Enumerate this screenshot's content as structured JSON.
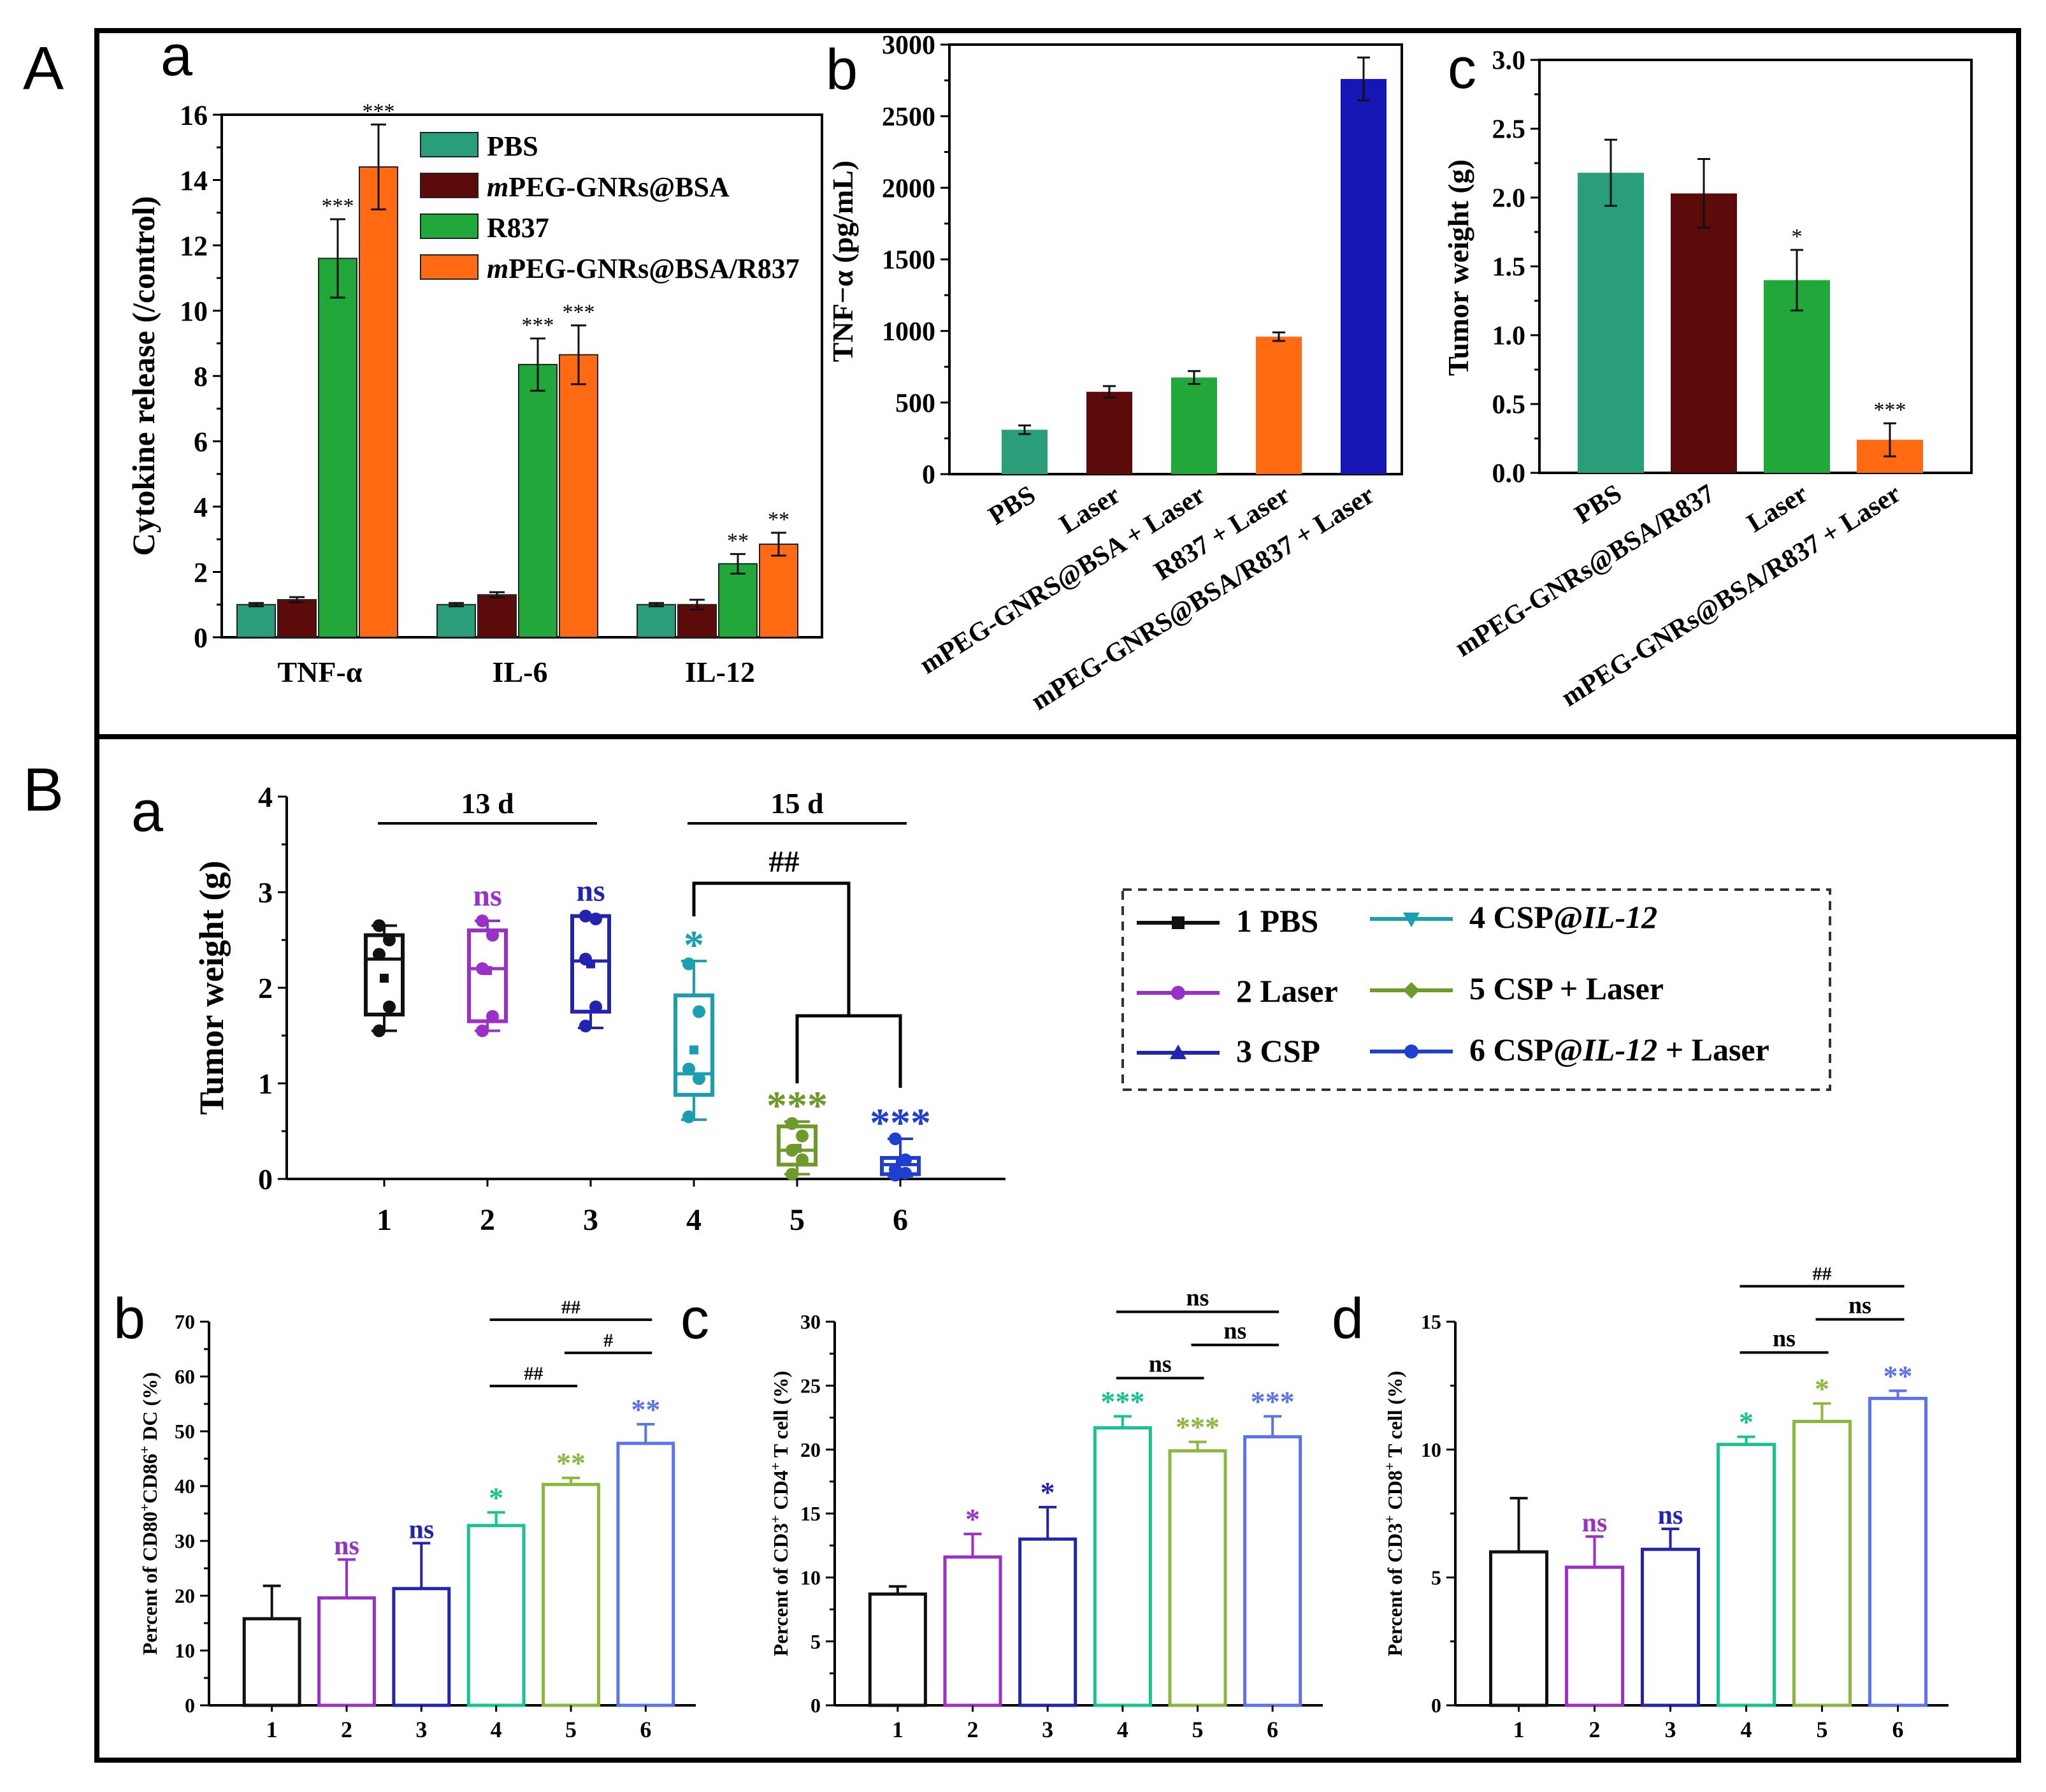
{
  "panel_labels": {
    "A": "A",
    "B": "B",
    "Aa": "a",
    "Ab": "b",
    "Ac": "c",
    "Ba": "a",
    "Bb": "b",
    "Bc": "c",
    "Bd": "d"
  },
  "colors": {
    "pbs_teal": "#2a9d7b",
    "maroon": "#5c0a0a",
    "green": "#22a83a",
    "orange": "#ff6a13",
    "navy": "#1616b4",
    "g1": "#111111",
    "g2": "#9b2fc9",
    "g3": "#2323b2",
    "g4": "#1a9fb0",
    "g5": "#6e9a2a",
    "g6": "#1f3fd0",
    "d4": "#16c28e",
    "d5": "#8ab83c",
    "d6": "#5a72f0"
  },
  "chart_data": [
    {
      "id": "Aa",
      "type": "bar",
      "ylabel": "Cytokine release (/control)",
      "ylim": [
        0,
        16
      ],
      "yticks": [
        "0",
        "2",
        "4",
        "6",
        "8",
        "10",
        "12",
        "14",
        "16"
      ],
      "categories": [
        "TNF-α",
        "IL-6",
        "IL-12"
      ],
      "series": [
        {
          "name": "PBS",
          "values": [
            1.0,
            1.0,
            1.0
          ],
          "errors": [
            0.05,
            0.05,
            0.05
          ],
          "sig": [
            "",
            "",
            ""
          ]
        },
        {
          "name": "mPEG-GNRs@BSA",
          "values": [
            1.15,
            1.3,
            1.0
          ],
          "errors": [
            0.08,
            0.08,
            0.15
          ],
          "sig": [
            "",
            "",
            ""
          ]
        },
        {
          "name": "R837",
          "values": [
            11.6,
            8.35,
            2.25
          ],
          "errors": [
            1.2,
            0.8,
            0.3
          ],
          "sig": [
            "***",
            "***",
            "**"
          ]
        },
        {
          "name": "mPEG-GNRs@BSA/R837",
          "values": [
            14.4,
            8.65,
            2.85
          ],
          "errors": [
            1.3,
            0.9,
            0.35
          ],
          "sig": [
            "***",
            "***",
            "**"
          ]
        }
      ],
      "legend": [
        {
          "prefix": "",
          "italic": "",
          "rest": "PBS"
        },
        {
          "prefix": "",
          "italic": "m",
          "rest": "PEG-GNRs@BSA"
        },
        {
          "prefix": "",
          "italic": "",
          "rest": "R837"
        },
        {
          "prefix": "",
          "italic": "m",
          "rest": "PEG-GNRs@BSA/R837"
        }
      ]
    },
    {
      "id": "Ab",
      "type": "bar",
      "ylabel": "TNF−α (pg/mL)",
      "ylim": [
        0,
        3000
      ],
      "yticks": [
        "0",
        "500",
        "1000",
        "1500",
        "2000",
        "2500",
        "3000"
      ],
      "categories": [
        "PBS",
        "Laser",
        "mPEG-GNRS@BSA + Laser",
        "R837 + Laser",
        "mPEG-GNRS@BSA/R837 + Laser"
      ],
      "values": [
        310,
        575,
        675,
        960,
        2760
      ],
      "errors": [
        30,
        40,
        45,
        30,
        150
      ]
    },
    {
      "id": "Ac",
      "type": "bar",
      "ylabel": "Tumor weight (g)",
      "ylim": [
        0,
        3.0
      ],
      "yticks": [
        "0.0",
        "0.5",
        "1.0",
        "1.5",
        "2.0",
        "2.5",
        "3.0"
      ],
      "categories": [
        "PBS",
        "mPEG-GNRs@BSA/R837",
        "Laser",
        "mPEG-GNRs@BSA/R837 + Laser"
      ],
      "values": [
        2.18,
        2.03,
        1.4,
        0.24
      ],
      "errors": [
        0.24,
        0.25,
        0.22,
        0.12
      ],
      "sig": [
        "",
        "",
        "*",
        "***"
      ]
    },
    {
      "id": "Ba",
      "type": "boxplot",
      "ylabel": "Tumor weight (g)",
      "ylim": [
        0,
        4
      ],
      "yticks": [
        "0",
        "1",
        "2",
        "3",
        "4"
      ],
      "categories": [
        "1",
        "2",
        "3",
        "4",
        "5",
        "6"
      ],
      "groups": [
        {
          "name": "PBS",
          "min": 1.55,
          "q1": 1.72,
          "median": 2.3,
          "q3": 2.55,
          "max": 2.65,
          "mean": 2.1,
          "points": [
            1.55,
            1.8,
            2.35,
            2.5,
            2.65
          ]
        },
        {
          "name": "Laser",
          "min": 1.55,
          "q1": 1.65,
          "median": 2.2,
          "q3": 2.6,
          "max": 2.7,
          "mean": 2.18,
          "points": [
            1.55,
            1.7,
            2.2,
            2.55,
            2.7
          ]
        },
        {
          "name": "CSP",
          "min": 1.58,
          "q1": 1.75,
          "median": 2.28,
          "q3": 2.75,
          "max": 2.75,
          "mean": 2.25,
          "points": [
            1.6,
            1.8,
            2.3,
            2.72,
            2.75
          ]
        },
        {
          "name": "CSP@IL-12",
          "min": 0.62,
          "q1": 0.88,
          "median": 1.1,
          "q3": 1.92,
          "max": 2.28,
          "mean": 1.35,
          "points": [
            0.65,
            1.05,
            1.15,
            1.75,
            2.25
          ]
        },
        {
          "name": "CSP + Laser",
          "min": 0.05,
          "q1": 0.15,
          "median": 0.3,
          "q3": 0.55,
          "max": 0.6,
          "mean": 0.32,
          "points": [
            0.05,
            0.2,
            0.3,
            0.45,
            0.58
          ]
        },
        {
          "name": "CSP@IL-12 + Laser",
          "min": 0.03,
          "q1": 0.05,
          "median": 0.15,
          "q3": 0.22,
          "max": 0.42,
          "mean": 0.18,
          "points": [
            0.04,
            0.06,
            0.1,
            0.2,
            0.42
          ]
        }
      ],
      "sig": [
        "",
        "ns",
        "ns",
        "*",
        "***",
        "***"
      ],
      "brackets": [
        {
          "label": "13 d",
          "from": 1,
          "to": 3
        },
        {
          "label": "15 d",
          "from": 4,
          "to": 6
        },
        {
          "label": "##",
          "from": 4,
          "to": "5-6"
        }
      ],
      "legend": [
        {
          "num": "1",
          "text": "PBS",
          "italic": "",
          "tail": ""
        },
        {
          "num": "2",
          "text": "Laser",
          "italic": "",
          "tail": ""
        },
        {
          "num": "3",
          "text": "CSP",
          "italic": "",
          "tail": ""
        },
        {
          "num": "4",
          "text": "CSP@",
          "italic": "IL-12",
          "tail": ""
        },
        {
          "num": "5",
          "text": "CSP + Laser",
          "italic": "",
          "tail": ""
        },
        {
          "num": "6",
          "text": "CSP@",
          "italic": "IL-12",
          "tail": " + Laser"
        }
      ]
    },
    {
      "id": "Bb",
      "type": "bar",
      "ylabel_parts": [
        "Percent of CD80",
        "+",
        "CD86",
        "+",
        " DC (%)"
      ],
      "ylim": [
        0,
        70
      ],
      "yticks": [
        "0",
        "10",
        "20",
        "30",
        "40",
        "50",
        "60",
        "70"
      ],
      "categories": [
        "1",
        "2",
        "3",
        "4",
        "5",
        "6"
      ],
      "values": [
        15.8,
        19.6,
        21.3,
        32.8,
        40.3,
        47.8
      ],
      "errors": [
        6.0,
        7.0,
        8.3,
        2.4,
        1.2,
        3.5
      ],
      "sig": [
        "",
        "ns",
        "ns",
        "*",
        "**",
        "**"
      ],
      "comparisons": [
        {
          "label": "##",
          "from": 4,
          "to": 5,
          "level": 0
        },
        {
          "label": "#",
          "from": 5,
          "to": 6,
          "level": 1
        },
        {
          "label": "##",
          "from": 4,
          "to": 6,
          "level": 2
        }
      ]
    },
    {
      "id": "Bc",
      "type": "bar",
      "ylabel_parts": [
        "Percent of CD3",
        "+",
        " CD4",
        "+",
        " T cell (%)"
      ],
      "ylim": [
        0,
        30
      ],
      "yticks": [
        "0",
        "5",
        "10",
        "15",
        "20",
        "25",
        "30"
      ],
      "categories": [
        "1",
        "2",
        "3",
        "4",
        "5",
        "6"
      ],
      "values": [
        8.7,
        11.6,
        13.0,
        21.7,
        19.9,
        21.0
      ],
      "errors": [
        0.6,
        1.8,
        2.5,
        0.9,
        0.7,
        1.6
      ],
      "sig": [
        "",
        "*",
        "*",
        "***",
        "***",
        "***"
      ],
      "comparisons": [
        {
          "label": "ns",
          "from": 4,
          "to": 5,
          "level": 0
        },
        {
          "label": "ns",
          "from": 5,
          "to": 6,
          "level": 1
        },
        {
          "label": "ns",
          "from": 4,
          "to": 6,
          "level": 2
        }
      ]
    },
    {
      "id": "Bd",
      "type": "bar",
      "ylabel_parts": [
        "Percent of CD3",
        "+",
        " CD8",
        "+",
        " T cell (%)"
      ],
      "ylim": [
        0,
        15
      ],
      "yticks": [
        "0",
        "5",
        "10",
        "15"
      ],
      "categories": [
        "1",
        "2",
        "3",
        "4",
        "5",
        "6"
      ],
      "values": [
        6.0,
        5.4,
        6.1,
        10.2,
        11.1,
        12.0
      ],
      "errors": [
        2.1,
        1.2,
        0.8,
        0.3,
        0.7,
        0.3
      ],
      "sig": [
        "",
        "ns",
        "ns",
        "*",
        "*",
        "**"
      ],
      "comparisons": [
        {
          "label": "ns",
          "from": 4,
          "to": 5,
          "level": 0
        },
        {
          "label": "ns",
          "from": 5,
          "to": 6,
          "level": 1
        },
        {
          "label": "##",
          "from": 4,
          "to": 6,
          "level": 2
        }
      ]
    }
  ]
}
